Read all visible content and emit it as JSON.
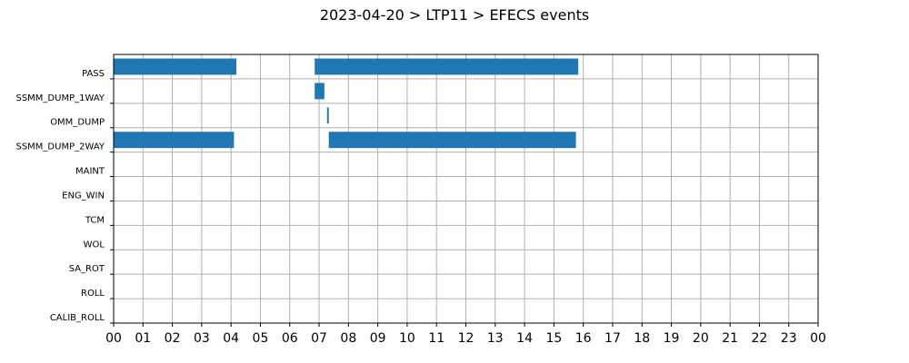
{
  "chart_data": {
    "type": "bar",
    "orientation": "horizontal-timeline",
    "title": "2023-04-20 > LTP11 > EFECS events",
    "categories": [
      "PASS",
      "SSMM_DUMP_1WAY",
      "OMM_DUMP",
      "SSMM_DUMP_2WAY",
      "MAINT",
      "ENG_WIN",
      "TCM",
      "WOL",
      "SA_ROT",
      "ROLL",
      "CALIB_ROLL"
    ],
    "x_tick_labels": [
      "00",
      "01",
      "02",
      "03",
      "04",
      "05",
      "06",
      "07",
      "08",
      "09",
      "10",
      "11",
      "12",
      "13",
      "14",
      "15",
      "16",
      "17",
      "18",
      "19",
      "20",
      "21",
      "22",
      "23",
      "00"
    ],
    "xlim": [
      0,
      24
    ],
    "grid": true,
    "bar_color": "#1f77b4",
    "events": [
      {
        "category": "PASS",
        "start": 0.0,
        "end": 4.18
      },
      {
        "category": "PASS",
        "start": 6.85,
        "end": 15.83
      },
      {
        "category": "SSMM_DUMP_1WAY",
        "start": 6.85,
        "end": 7.18
      },
      {
        "category": "OMM_DUMP",
        "start": 7.27,
        "end": 7.33
      },
      {
        "category": "SSMM_DUMP_2WAY",
        "start": 0.0,
        "end": 4.1
      },
      {
        "category": "SSMM_DUMP_2WAY",
        "start": 7.33,
        "end": 15.75
      }
    ]
  }
}
